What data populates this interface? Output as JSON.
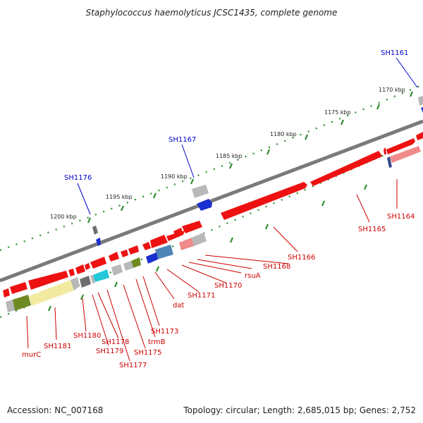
{
  "title": "Staphylococcus haemolyticus JCSC1435, complete genome",
  "footer": {
    "accession": "Accession: NC_007168",
    "summary": "Topology: circular; Length: 2,685,015 bp; Genes: 2,752"
  },
  "colors": {
    "backbone": "#8a8a8a",
    "forward_gene": "#ee1111",
    "reverse_gene": "#ee1111",
    "label_forward": "#0000cc",
    "label_reverse": "#cc0000",
    "tick": "#2e8b2e",
    "light_red": "#f08a8a",
    "gray_block": "#b8b8b8",
    "dark_gray_block": "#6e6e6e",
    "yellow_block": "#f3eaa2",
    "olive_block": "#6e8a22",
    "cyan_block": "#22c8d8",
    "steel_blue_block": "#4f86b8",
    "blue_block": "#1a2fd0",
    "navy_block": "#3a4a8a"
  },
  "scale_labels": [
    "1170 kbp",
    "1175 kbp",
    "1180 kbp",
    "1185 kbp",
    "1190 kbp",
    "1195 kbp",
    "1200 kbp"
  ],
  "upper_labels": [
    "SH1161",
    "SH1167",
    "SH1176"
  ],
  "lower_labels": [
    "SH1164",
    "SH1165",
    "SH1166",
    "SH1168",
    "rsuA",
    "SH1170",
    "SH1171",
    "dat",
    "SH1173",
    "trmB",
    "SH1175",
    "SH1177",
    "SH1178",
    "SH1179",
    "SH1180",
    "SH1181",
    "murC"
  ]
}
